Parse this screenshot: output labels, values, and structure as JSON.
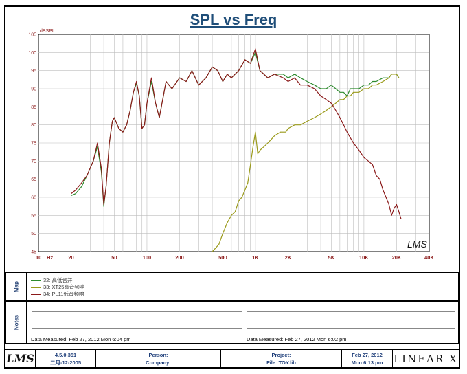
{
  "title": "SPL vs Freq",
  "chart_data": {
    "type": "line",
    "title": "SPL vs Freq",
    "ylabel": "dBSPL",
    "xlabel": "Hz",
    "xscale": "log",
    "xlim": [
      10,
      40000
    ],
    "ylim": [
      45,
      105
    ],
    "x_ticks": [
      {
        "v": 10,
        "label": "10"
      },
      {
        "v": 20,
        "label": "20"
      },
      {
        "v": 50,
        "label": "50"
      },
      {
        "v": 100,
        "label": "100"
      },
      {
        "v": 200,
        "label": "200"
      },
      {
        "v": 500,
        "label": "500"
      },
      {
        "v": 1000,
        "label": "1K"
      },
      {
        "v": 2000,
        "label": "2K"
      },
      {
        "v": 5000,
        "label": "5K"
      },
      {
        "v": 10000,
        "label": "10K"
      },
      {
        "v": 20000,
        "label": "20K"
      },
      {
        "v": 40000,
        "label": "40K"
      }
    ],
    "x_unit_label": "Hz",
    "y_ticks": [
      45,
      50,
      55,
      60,
      65,
      70,
      75,
      80,
      85,
      90,
      95,
      100,
      105
    ],
    "series": [
      {
        "name": "32: 高低合并",
        "color": "#2e8b2e",
        "points": [
          [
            20,
            60.5
          ],
          [
            22,
            61
          ],
          [
            25,
            63
          ],
          [
            28,
            66
          ],
          [
            32,
            70
          ],
          [
            35,
            74
          ],
          [
            38,
            67
          ],
          [
            40,
            57.5
          ],
          [
            42,
            63
          ],
          [
            45,
            75
          ],
          [
            48,
            81
          ],
          [
            50,
            82
          ],
          [
            55,
            79
          ],
          [
            60,
            78
          ],
          [
            65,
            80
          ],
          [
            70,
            84
          ],
          [
            75,
            89
          ],
          [
            80,
            91.5
          ],
          [
            85,
            88
          ],
          [
            90,
            79
          ],
          [
            95,
            80
          ],
          [
            100,
            86
          ],
          [
            110,
            92
          ],
          [
            120,
            86
          ],
          [
            130,
            82
          ],
          [
            150,
            92
          ],
          [
            170,
            90
          ],
          [
            200,
            93
          ],
          [
            230,
            92
          ],
          [
            260,
            95
          ],
          [
            300,
            91
          ],
          [
            350,
            93
          ],
          [
            400,
            96
          ],
          [
            450,
            95
          ],
          [
            500,
            92
          ],
          [
            550,
            94
          ],
          [
            600,
            93
          ],
          [
            700,
            95
          ],
          [
            800,
            98
          ],
          [
            900,
            97
          ],
          [
            1000,
            100
          ],
          [
            1100,
            95
          ],
          [
            1300,
            93
          ],
          [
            1500,
            94
          ],
          [
            1800,
            94
          ],
          [
            2000,
            93
          ],
          [
            2300,
            94
          ],
          [
            2600,
            93
          ],
          [
            3000,
            92
          ],
          [
            3500,
            91
          ],
          [
            4000,
            90
          ],
          [
            4500,
            90
          ],
          [
            5000,
            91
          ],
          [
            5500,
            90
          ],
          [
            6000,
            89
          ],
          [
            6500,
            89
          ],
          [
            7000,
            88
          ],
          [
            7500,
            90
          ],
          [
            8000,
            90
          ],
          [
            9000,
            90
          ],
          [
            10000,
            91
          ],
          [
            11000,
            91
          ],
          [
            12000,
            92
          ],
          [
            13000,
            92
          ],
          [
            15000,
            93
          ],
          [
            17000,
            93
          ],
          [
            18000,
            94
          ],
          [
            20000,
            94
          ],
          [
            21000,
            93
          ]
        ]
      },
      {
        "name": "33: XT25高音频响",
        "color": "#9a9a1a",
        "points": [
          [
            400,
            45
          ],
          [
            430,
            46
          ],
          [
            460,
            47
          ],
          [
            500,
            50
          ],
          [
            550,
            53
          ],
          [
            600,
            55
          ],
          [
            650,
            56
          ],
          [
            700,
            59
          ],
          [
            750,
            60
          ],
          [
            800,
            62
          ],
          [
            850,
            64
          ],
          [
            900,
            69
          ],
          [
            950,
            74
          ],
          [
            1000,
            78
          ],
          [
            1050,
            72
          ],
          [
            1100,
            73
          ],
          [
            1200,
            74
          ],
          [
            1300,
            75
          ],
          [
            1400,
            76
          ],
          [
            1500,
            77
          ],
          [
            1700,
            78
          ],
          [
            1900,
            78
          ],
          [
            2000,
            79
          ],
          [
            2300,
            80
          ],
          [
            2600,
            80
          ],
          [
            3000,
            81
          ],
          [
            3500,
            82
          ],
          [
            4000,
            83
          ],
          [
            4500,
            84
          ],
          [
            5000,
            85
          ],
          [
            5500,
            86
          ],
          [
            6000,
            87
          ],
          [
            6500,
            87
          ],
          [
            7000,
            88
          ],
          [
            7500,
            88
          ],
          [
            8000,
            89
          ],
          [
            9000,
            89
          ],
          [
            10000,
            90
          ],
          [
            11000,
            90
          ],
          [
            12000,
            91
          ],
          [
            13000,
            91
          ],
          [
            15000,
            92
          ],
          [
            17000,
            93
          ],
          [
            18000,
            94
          ],
          [
            20000,
            94
          ],
          [
            21000,
            93
          ]
        ]
      },
      {
        "name": "34: PL11低音频响",
        "color": "#8b1a1a",
        "points": [
          [
            20,
            61
          ],
          [
            22,
            62
          ],
          [
            25,
            64
          ],
          [
            28,
            66
          ],
          [
            32,
            70
          ],
          [
            35,
            75
          ],
          [
            38,
            68
          ],
          [
            40,
            58
          ],
          [
            42,
            63
          ],
          [
            45,
            75
          ],
          [
            48,
            81
          ],
          [
            50,
            82
          ],
          [
            55,
            79
          ],
          [
            60,
            78
          ],
          [
            65,
            80
          ],
          [
            70,
            84
          ],
          [
            75,
            89
          ],
          [
            80,
            92
          ],
          [
            85,
            88
          ],
          [
            90,
            79
          ],
          [
            95,
            80
          ],
          [
            100,
            86
          ],
          [
            110,
            93
          ],
          [
            120,
            86
          ],
          [
            130,
            82
          ],
          [
            150,
            92
          ],
          [
            170,
            90
          ],
          [
            200,
            93
          ],
          [
            230,
            92
          ],
          [
            260,
            95
          ],
          [
            300,
            91
          ],
          [
            350,
            93
          ],
          [
            400,
            96
          ],
          [
            450,
            95
          ],
          [
            500,
            92
          ],
          [
            550,
            94
          ],
          [
            600,
            93
          ],
          [
            700,
            95
          ],
          [
            800,
            98
          ],
          [
            900,
            97
          ],
          [
            1000,
            101
          ],
          [
            1100,
            95
          ],
          [
            1300,
            93
          ],
          [
            1500,
            94
          ],
          [
            1800,
            93
          ],
          [
            2000,
            92
          ],
          [
            2300,
            93
          ],
          [
            2600,
            91
          ],
          [
            3000,
            91
          ],
          [
            3500,
            90
          ],
          [
            4000,
            88
          ],
          [
            4500,
            87
          ],
          [
            5000,
            86
          ],
          [
            5500,
            84
          ],
          [
            6000,
            82
          ],
          [
            6500,
            80
          ],
          [
            7000,
            78
          ],
          [
            8000,
            75
          ],
          [
            9000,
            73
          ],
          [
            10000,
            71
          ],
          [
            11000,
            70
          ],
          [
            12000,
            69
          ],
          [
            13000,
            66
          ],
          [
            14000,
            65
          ],
          [
            15000,
            62
          ],
          [
            16000,
            60
          ],
          [
            17000,
            58
          ],
          [
            18000,
            55
          ],
          [
            19000,
            57
          ],
          [
            20000,
            58
          ],
          [
            21000,
            56
          ],
          [
            22000,
            54
          ]
        ]
      }
    ]
  },
  "lms_logo_plot": "LMS",
  "legend": {
    "label": "Map",
    "items": [
      {
        "text": "32: 高低合并",
        "color": "#2e8b2e"
      },
      {
        "text": "33: XT25高音频响",
        "color": "#9a9a1a"
      },
      {
        "text": "34: PL11低音频响",
        "color": "#8b1a1a"
      }
    ]
  },
  "notes": {
    "label": "Notes",
    "measured_left": "Data Measured: Feb 27, 2012  Mon  6:04 pm",
    "measured_right": "Data Measured: Feb 27, 2012  Mon  6:02 pm"
  },
  "footer": {
    "logo": "LMS",
    "version": "4.5.0.351",
    "version_date": "二月-12-2005",
    "person_label": "Person:",
    "company_label": "Company:",
    "project_label": "Project:",
    "file_label": "File: TOY.lib",
    "date": "Feb 27, 2012",
    "time": "Mon  6:13 pm",
    "brand": "LINEAR X"
  }
}
